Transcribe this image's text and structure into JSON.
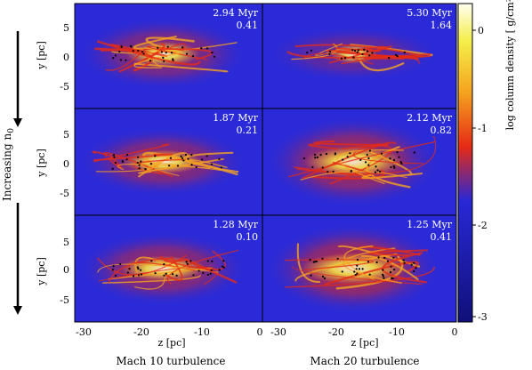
{
  "panels": [
    {
      "time": "2.94 Myr",
      "value": "0.41"
    },
    {
      "time": "5.30 Myr",
      "value": "1.64"
    },
    {
      "time": "1.87 Myr",
      "value": "0.21"
    },
    {
      "time": "2.12 Myr",
      "value": "0.82"
    },
    {
      "time": "1.28 Myr",
      "value": "0.10"
    },
    {
      "time": "1.25 Myr",
      "value": "0.41"
    }
  ],
  "axes": {
    "y_label": "y [pc]",
    "y_ticks": [
      "5",
      "0",
      "-5"
    ],
    "z_label": "z [pc]",
    "z_ticks_left": [
      "-30",
      "-20",
      "-10",
      "0"
    ],
    "z_ticks_right": [
      "-30",
      "-20",
      "-10",
      "0"
    ]
  },
  "column_labels": [
    "Mach 10 turbulence",
    "Mach 20 turbulence"
  ],
  "side_label_prefix": "Increasing n",
  "side_label_sub": "0",
  "colorbar": {
    "label": "log column density [ g/cm²]",
    "ticks": [
      "0",
      "-1",
      "-2",
      "-3"
    ],
    "colors": [
      "#fffff0",
      "#f4ee48",
      "#f5a21f",
      "#e52a15",
      "#2828d6",
      "#10107a"
    ]
  }
}
